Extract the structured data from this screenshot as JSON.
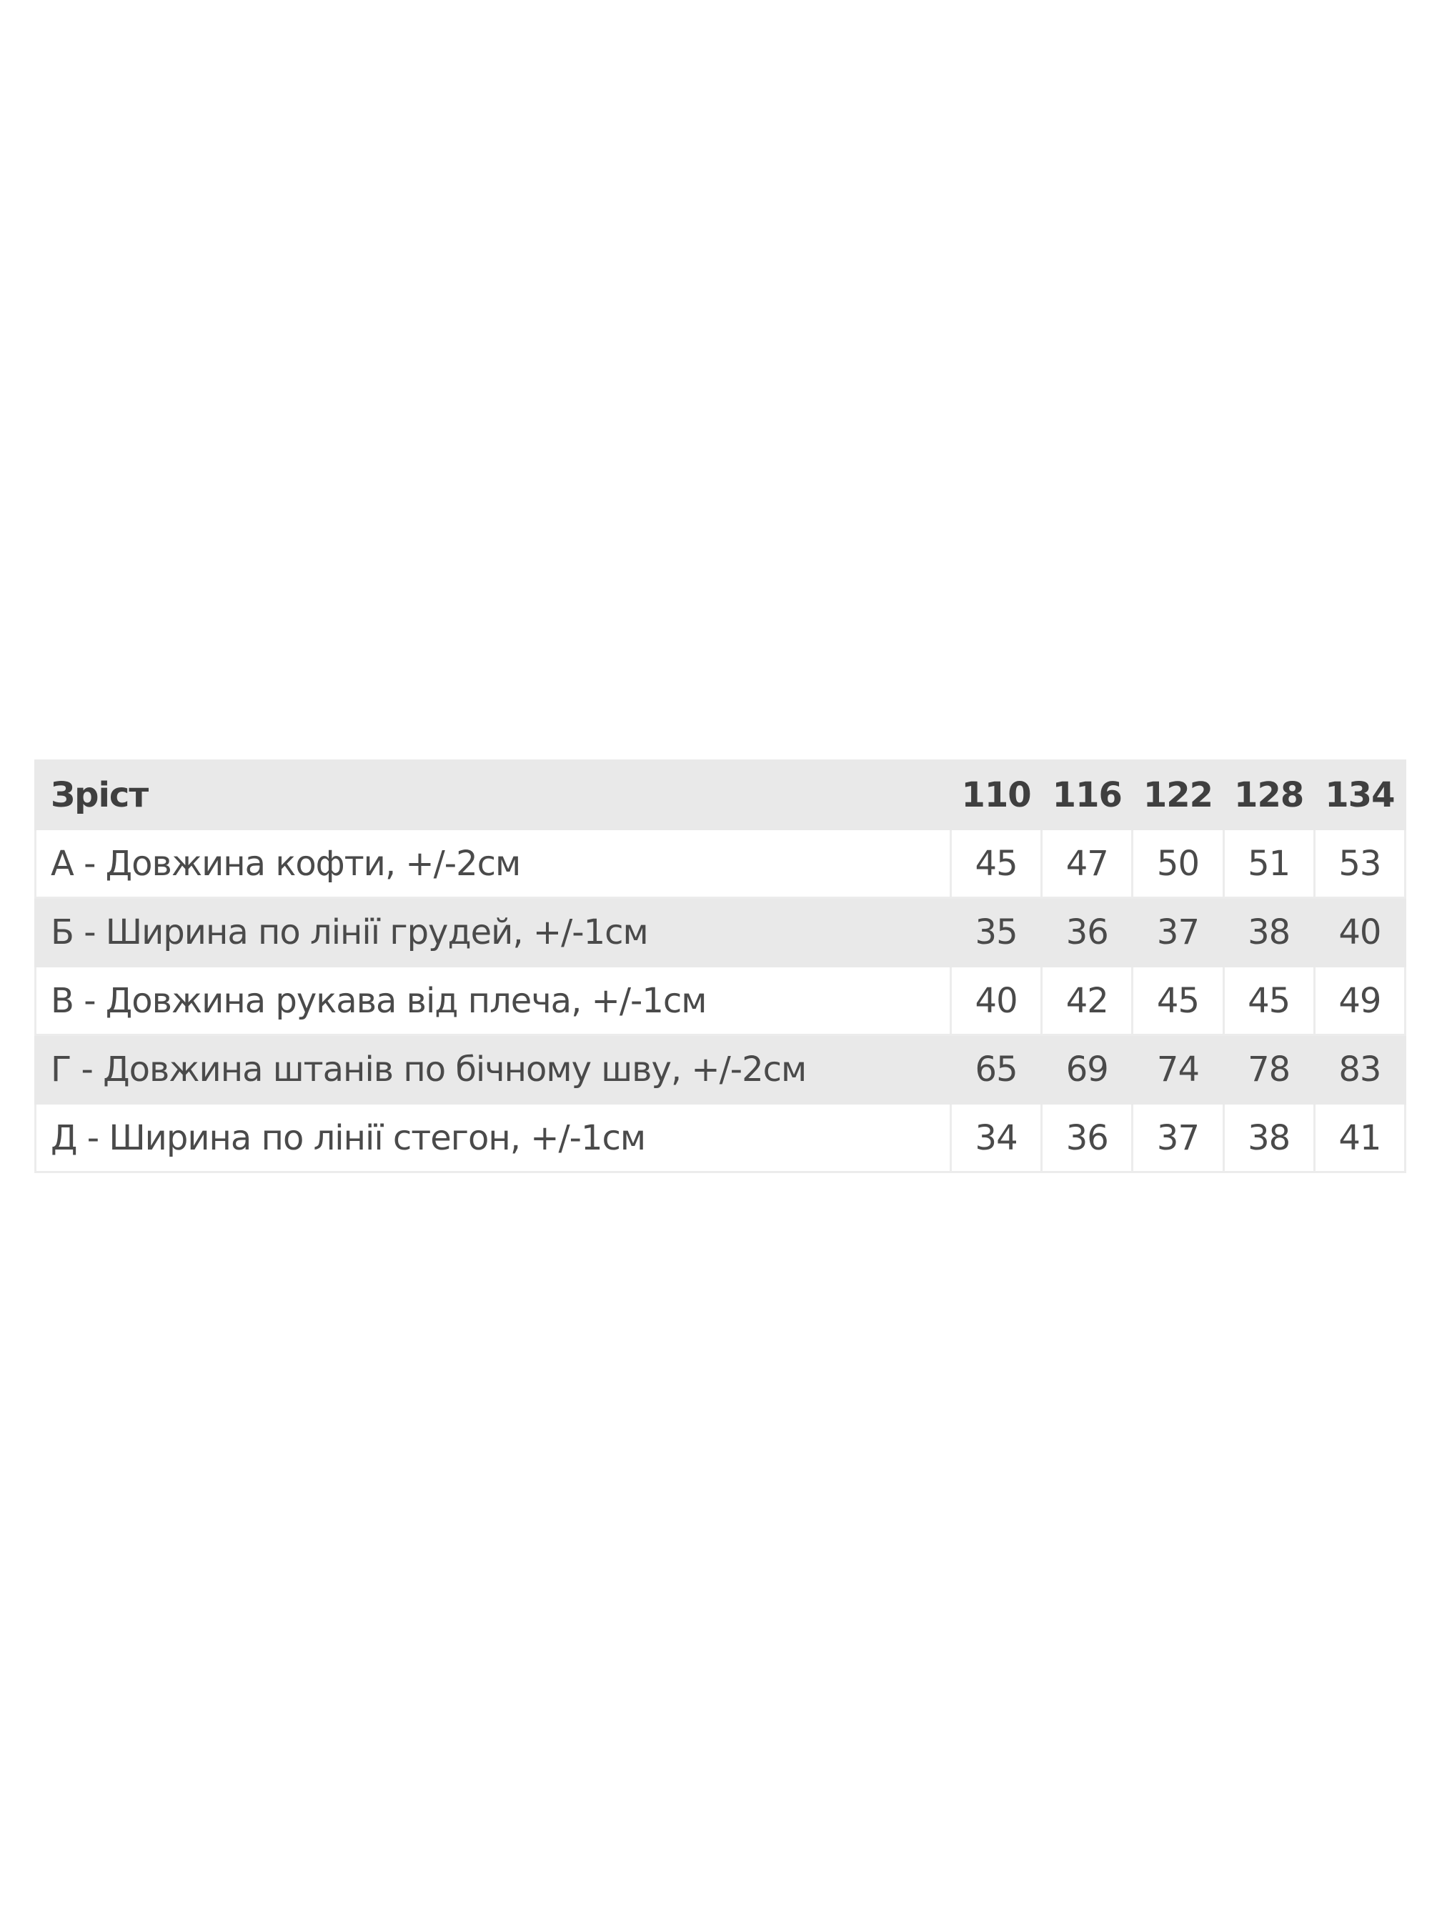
{
  "table": {
    "header_label": "Зріст",
    "sizes": [
      "110",
      "116",
      "122",
      "128",
      "134"
    ],
    "rows": [
      {
        "label": "А - Довжина кофти, +/-2см",
        "values": [
          "45",
          "47",
          "50",
          "51",
          "53"
        ]
      },
      {
        "label": "Б - Ширина по лінії грудей, +/-1см",
        "values": [
          "35",
          "36",
          "37",
          "38",
          "40"
        ]
      },
      {
        "label": "В - Довжина рукава від плеча, +/-1см",
        "values": [
          "40",
          "42",
          "45",
          "45",
          "49"
        ]
      },
      {
        "label": "Г - Довжина штанів по бічному шву, +/-2см",
        "values": [
          "65",
          "69",
          "74",
          "78",
          "83"
        ]
      },
      {
        "label": "Д - Ширина по лінії стегон, +/-1см",
        "values": [
          "34",
          "36",
          "37",
          "38",
          "41"
        ]
      }
    ]
  },
  "colors": {
    "row_alt_bg": "#e9e9e9",
    "text": "#4a4a4a"
  }
}
